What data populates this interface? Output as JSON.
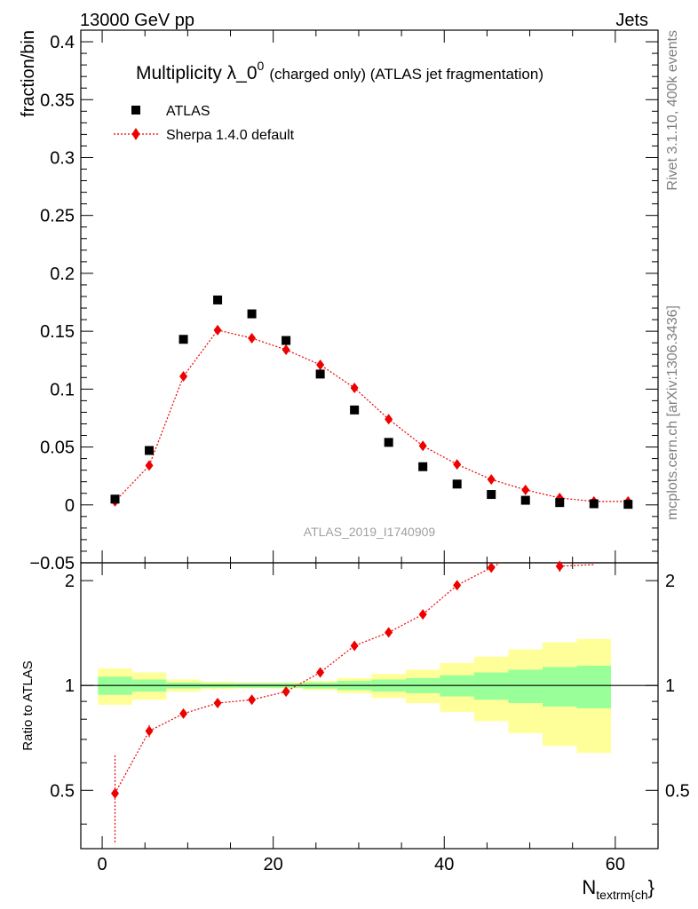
{
  "header": {
    "energy_label": "13000 GeV pp",
    "process_label": "Jets"
  },
  "side_text": {
    "rivet_label": "Rivet 3.1.10,  400k events",
    "mcplots_label": "mcplots.cern.ch [arXiv:1306.3436]"
  },
  "colors": {
    "data": "#000000",
    "mc": "#ee0000",
    "band_inner": "#99ff99",
    "band_outer": "#ffff99"
  },
  "chart_data": [
    {
      "panel": "main",
      "type": "scatter",
      "title": "Multiplicity λ_0⁰ (charged only) (ATLAS jet fragmentation)",
      "title_main": "Multiplicity λ_0",
      "title_sup": "0",
      "title_rest": "(charged only) (ATLAS jet fragmentation)",
      "ylabel": "fraction/bin",
      "xlabel": "N_textrm{ch}",
      "xlabel_main": "N",
      "xlabel_sub": "textrm{ch",
      "xlabel_close": "}",
      "analysis_id": "ATLAS_2019_I1740909",
      "xlim": [
        -2.5,
        65
      ],
      "ylim": [
        -0.05,
        0.41
      ],
      "x_ticks": [
        0,
        20,
        40,
        60
      ],
      "y_ticks": [
        -0.05,
        0,
        0.05,
        0.1,
        0.15,
        0.2,
        0.25,
        0.3,
        0.35,
        0.4
      ],
      "y_tick_labels": [
        "−0.05",
        "0",
        "0.05",
        "0.1",
        "0.15",
        "0.2",
        "0.25",
        "0.3",
        "0.35",
        "0.4"
      ],
      "legend_position": "top-left",
      "x": [
        1.5,
        5.5,
        9.5,
        13.5,
        17.5,
        21.5,
        25.5,
        29.5,
        33.5,
        37.5,
        41.5,
        45.5,
        49.5,
        53.5,
        57.5,
        61.5
      ],
      "series": [
        {
          "name": "ATLAS",
          "marker": "square",
          "values": [
            0.005,
            0.047,
            0.143,
            0.177,
            0.165,
            0.142,
            0.113,
            0.082,
            0.054,
            0.033,
            0.018,
            0.009,
            0.004,
            0.002,
            0.001,
            0.0005
          ]
        },
        {
          "name": "Sherpa 1.4.0 default",
          "marker": "diamond",
          "line": "dotted",
          "values": [
            0.003,
            0.034,
            0.111,
            0.151,
            0.144,
            0.134,
            0.121,
            0.101,
            0.074,
            0.051,
            0.035,
            0.022,
            0.013,
            0.006,
            0.003,
            0.003
          ]
        }
      ]
    },
    {
      "panel": "ratio",
      "type": "line",
      "ylabel": "Ratio to ATLAS",
      "ylim": [
        0.34,
        2.25
      ],
      "y_ticks": [
        0.5,
        1,
        2
      ],
      "y_tick_labels": [
        "0.5",
        "1",
        "2"
      ],
      "bin_edges": [
        -0.5,
        3.5,
        7.5,
        11.5,
        15.5,
        19.5,
        23.5,
        27.5,
        31.5,
        35.5,
        39.5,
        43.5,
        47.5,
        51.5,
        55.5,
        59.5
      ],
      "band_inner": [
        [
          0.94,
          1.06
        ],
        [
          0.96,
          1.04
        ],
        [
          0.98,
          1.02
        ],
        [
          0.985,
          1.015
        ],
        [
          0.985,
          1.015
        ],
        [
          0.985,
          1.015
        ],
        [
          0.98,
          1.02
        ],
        [
          0.97,
          1.03
        ],
        [
          0.96,
          1.04
        ],
        [
          0.95,
          1.05
        ],
        [
          0.93,
          1.07
        ],
        [
          0.91,
          1.09
        ],
        [
          0.89,
          1.11
        ],
        [
          0.87,
          1.13
        ],
        [
          0.86,
          1.14
        ]
      ],
      "band_outer": [
        [
          0.88,
          1.12
        ],
        [
          0.91,
          1.09
        ],
        [
          0.96,
          1.04
        ],
        [
          0.975,
          1.025
        ],
        [
          0.98,
          1.02
        ],
        [
          0.98,
          1.02
        ],
        [
          0.97,
          1.03
        ],
        [
          0.95,
          1.05
        ],
        [
          0.92,
          1.08
        ],
        [
          0.89,
          1.11
        ],
        [
          0.84,
          1.16
        ],
        [
          0.79,
          1.21
        ],
        [
          0.73,
          1.27
        ],
        [
          0.67,
          1.33
        ],
        [
          0.64,
          1.36
        ]
      ],
      "series": [
        {
          "name": "Sherpa 1.4.0 default / ATLAS",
          "x": [
            1.5,
            5.5,
            9.5,
            13.5,
            17.5,
            21.5,
            25.5,
            29.5,
            33.5,
            37.5,
            41.5,
            45.5
          ],
          "values": [
            0.49,
            0.74,
            0.83,
            0.89,
            0.91,
            0.96,
            1.09,
            1.3,
            1.42,
            1.6,
            1.94,
            2.18
          ],
          "errors": [
            0.14,
            0.03,
            0.01,
            0.01,
            0.01,
            0.01,
            0.01,
            0.02,
            0.02,
            0.03,
            0.04,
            0.06
          ]
        }
      ],
      "offscale_points": [
        {
          "x": 53.5,
          "value": 2.2,
          "error": 0.08
        }
      ]
    }
  ]
}
